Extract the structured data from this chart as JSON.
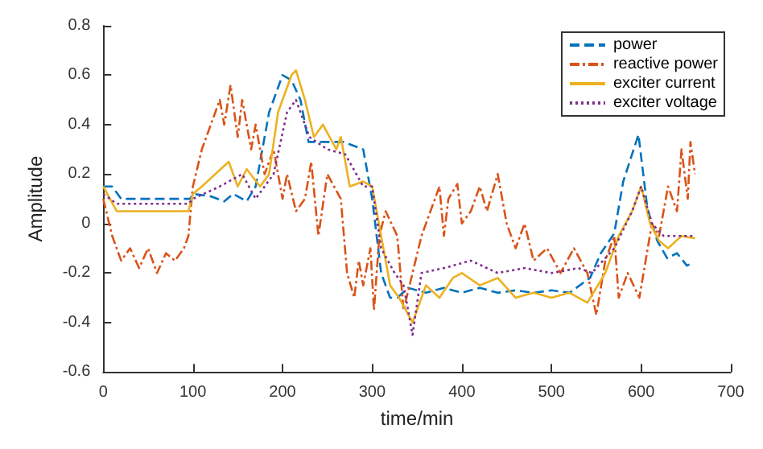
{
  "chart_data": {
    "type": "line",
    "xlabel": "time/min",
    "ylabel": "Amplitude",
    "xlim": [
      0,
      700
    ],
    "xticks": [
      0,
      100,
      200,
      300,
      400,
      500,
      600,
      700
    ],
    "ylim": [
      -0.6,
      0.8
    ],
    "yticks": [
      -0.6,
      -0.4,
      -0.2,
      0,
      0.2,
      0.4,
      0.6,
      0.8
    ],
    "grid": false,
    "legend": "top right",
    "marker": "none",
    "series": [
      {
        "name": "power",
        "color": "#0072bd",
        "line_style": "dashed",
        "x": [
          0,
          10,
          20,
          40,
          60,
          80,
          97,
          100,
          120,
          135,
          145,
          160,
          170,
          185,
          200,
          210,
          220,
          229,
          245,
          268,
          290,
          300,
          310,
          320,
          328,
          340,
          360,
          380,
          400,
          420,
          440,
          460,
          480,
          500,
          520,
          543,
          555,
          570,
          580,
          597,
          607,
          618,
          629,
          640,
          651,
          657
        ],
        "values": [
          0.15,
          0.15,
          0.1,
          0.1,
          0.1,
          0.1,
          0.1,
          0.12,
          0.11,
          0.09,
          0.12,
          0.09,
          0.15,
          0.45,
          0.6,
          0.58,
          0.5,
          0.33,
          0.33,
          0.33,
          0.3,
          0.1,
          -0.2,
          -0.3,
          -0.3,
          -0.26,
          -0.28,
          -0.26,
          -0.28,
          -0.26,
          -0.28,
          -0.27,
          -0.28,
          -0.27,
          -0.28,
          -0.22,
          -0.12,
          -0.04,
          0.17,
          0.36,
          0.06,
          -0.07,
          -0.14,
          -0.12,
          -0.17,
          -0.16
        ]
      },
      {
        "name": "reactive power",
        "color": "#d95319",
        "line_style": "dashdot",
        "x": [
          0,
          10,
          20,
          30,
          40,
          50,
          60,
          70,
          80,
          90,
          95,
          100,
          110,
          120,
          130,
          135,
          142,
          150,
          155,
          165,
          170,
          180,
          190,
          200,
          205,
          215,
          225,
          232,
          240,
          250,
          265,
          272,
          280,
          285,
          290,
          298,
          302,
          308,
          315,
          328,
          335,
          345,
          355,
          370,
          375,
          380,
          385,
          395,
          400,
          410,
          420,
          428,
          440,
          450,
          460,
          470,
          480,
          495,
          510,
          525,
          540,
          550,
          560,
          570,
          575,
          585,
          598,
          605,
          612,
          620,
          630,
          640,
          645,
          652,
          655,
          660
        ],
        "values": [
          0.1,
          -0.05,
          -0.15,
          -0.1,
          -0.18,
          -0.1,
          -0.2,
          -0.12,
          -0.15,
          -0.1,
          -0.05,
          0.15,
          0.3,
          0.4,
          0.5,
          0.4,
          0.56,
          0.35,
          0.5,
          0.3,
          0.4,
          0.2,
          0.3,
          0.1,
          0.2,
          0.05,
          0.1,
          0.25,
          -0.05,
          0.2,
          0.1,
          -0.2,
          -0.3,
          -0.15,
          -0.25,
          -0.1,
          -0.35,
          -0.05,
          0.05,
          -0.05,
          -0.35,
          -0.2,
          -0.05,
          0.1,
          0.15,
          -0.05,
          0.1,
          0.16,
          0,
          0.05,
          0.15,
          0.05,
          0.2,
          0,
          -0.1,
          0,
          -0.15,
          -0.1,
          -0.2,
          -0.1,
          -0.2,
          -0.37,
          -0.15,
          -0.05,
          -0.3,
          -0.2,
          -0.3,
          -0.15,
          0,
          -0.05,
          0.15,
          0.05,
          0.3,
          0.1,
          0.33,
          0.2
        ]
      },
      {
        "name": "exciter current",
        "color": "#edb120",
        "line_style": "solid",
        "x": [
          0,
          15,
          40,
          70,
          95,
          100,
          110,
          140,
          150,
          160,
          175,
          185,
          195,
          210,
          215,
          225,
          235,
          245,
          260,
          265,
          275,
          290,
          300,
          310,
          320,
          330,
          345,
          360,
          375,
          390,
          400,
          420,
          440,
          460,
          480,
          500,
          520,
          540,
          560,
          575,
          590,
          600,
          610,
          620,
          630,
          645,
          660
        ],
        "values": [
          0.15,
          0.05,
          0.05,
          0.05,
          0.05,
          0.12,
          0.15,
          0.25,
          0.15,
          0.22,
          0.15,
          0.2,
          0.45,
          0.6,
          0.62,
          0.5,
          0.35,
          0.4,
          0.3,
          0.35,
          0.15,
          0.17,
          0.15,
          -0.05,
          -0.25,
          -0.3,
          -0.4,
          -0.25,
          -0.3,
          -0.22,
          -0.2,
          -0.25,
          -0.22,
          -0.3,
          -0.28,
          -0.3,
          -0.28,
          -0.32,
          -0.2,
          -0.05,
          0.05,
          0.15,
          0,
          -0.07,
          -0.1,
          -0.05,
          -0.06
        ]
      },
      {
        "name": "exciter voltage",
        "color": "#7e2f8e",
        "line_style": "dotted",
        "x": [
          0,
          15,
          50,
          95,
          100,
          130,
          155,
          170,
          190,
          205,
          215,
          230,
          250,
          270,
          290,
          300,
          310,
          325,
          335,
          345,
          355,
          380,
          410,
          440,
          470,
          500,
          530,
          545,
          570,
          590,
          600,
          612,
          625,
          660
        ],
        "values": [
          0.12,
          0.08,
          0.08,
          0.08,
          0.1,
          0.15,
          0.2,
          0.1,
          0.2,
          0.45,
          0.5,
          0.35,
          0.3,
          0.28,
          0.15,
          0.15,
          -0.1,
          -0.2,
          -0.25,
          -0.45,
          -0.2,
          -0.18,
          -0.15,
          -0.2,
          -0.18,
          -0.2,
          -0.18,
          -0.2,
          -0.1,
          0.05,
          0.15,
          0,
          -0.05,
          -0.05
        ]
      }
    ]
  }
}
